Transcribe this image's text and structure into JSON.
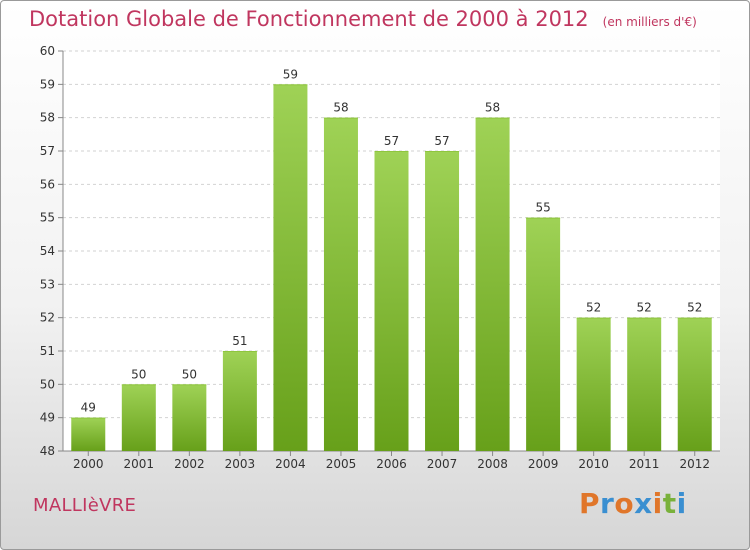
{
  "title": "Dotation Globale de Fonctionnement de 2000 à 2012",
  "unit": "(en milliers d'€)",
  "commune": "MALLIèVRE",
  "logo": {
    "text": "Proxiti",
    "letters": [
      {
        "ch": "P",
        "color": "#e0762a"
      },
      {
        "ch": "r",
        "color": "#3a8fd1"
      },
      {
        "ch": "o",
        "color": "#e0762a"
      },
      {
        "ch": "x",
        "color": "#3a8fd1"
      },
      {
        "ch": "i",
        "color": "#e0762a"
      },
      {
        "ch": "t",
        "color": "#79b13b"
      },
      {
        "ch": "i",
        "color": "#3a8fd1"
      }
    ]
  },
  "colors": {
    "bar_light": "#9fd256",
    "bar_dark": "#67a01a",
    "title": "#c0365f",
    "grid": "#d2d2d2"
  },
  "chart_data": {
    "type": "bar",
    "categories": [
      "2000",
      "2001",
      "2002",
      "2003",
      "2004",
      "2005",
      "2006",
      "2007",
      "2008",
      "2009",
      "2010",
      "2011",
      "2012"
    ],
    "values": [
      49,
      50,
      50,
      51,
      59,
      58,
      57,
      57,
      58,
      55,
      52,
      52,
      52
    ],
    "data_labels": [
      "49",
      "50",
      "50",
      "51",
      "59",
      "58",
      "57",
      "57",
      "58",
      "55",
      "52",
      "52",
      "52"
    ],
    "yticks": [
      48,
      49,
      50,
      51,
      52,
      53,
      54,
      55,
      56,
      57,
      58,
      59,
      60
    ],
    "ylim": [
      48,
      60
    ],
    "grid": true,
    "legend": "none"
  }
}
